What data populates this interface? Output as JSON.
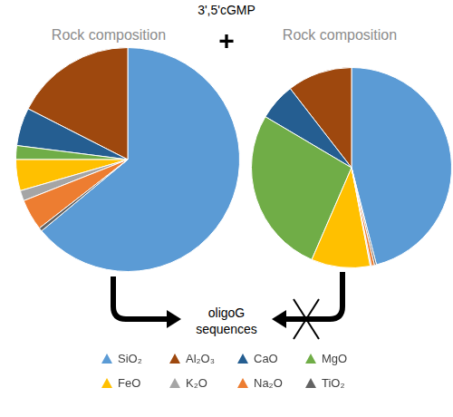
{
  "chart_data": [
    {
      "type": "pie",
      "title": "Rock composition",
      "categories": [
        "SiO₂",
        "Al₂O₃",
        "CaO",
        "MgO",
        "FeO",
        "K₂O",
        "Na₂O",
        "TiO₂"
      ],
      "values": [
        64,
        17.5,
        5.5,
        2,
        4.5,
        1.5,
        4.5,
        0.5
      ],
      "colors": [
        "#5b9bd5",
        "#9e480e",
        "#255e91",
        "#70ad47",
        "#ffc000",
        "#a5a5a5",
        "#ed7d31",
        "#636363"
      ],
      "legend": "bottom"
    },
    {
      "type": "pie",
      "title": "Rock composition",
      "categories": [
        "SiO₂",
        "Al₂O₃",
        "CaO",
        "MgO",
        "FeO",
        "K₂O",
        "Na₂O",
        "TiO₂"
      ],
      "values": [
        46,
        10.5,
        6,
        27,
        9.5,
        0.2,
        0.5,
        0.3
      ],
      "colors": [
        "#5b9bd5",
        "#9e480e",
        "#255e91",
        "#70ad47",
        "#ffc000",
        "#a5a5a5",
        "#ed7d31",
        "#636363"
      ],
      "legend": "bottom"
    }
  ],
  "diagram": {
    "reagent": "3',5'cGMP",
    "operator": "+",
    "product": "oligoG sequences",
    "yields": [
      true,
      false
    ]
  }
}
